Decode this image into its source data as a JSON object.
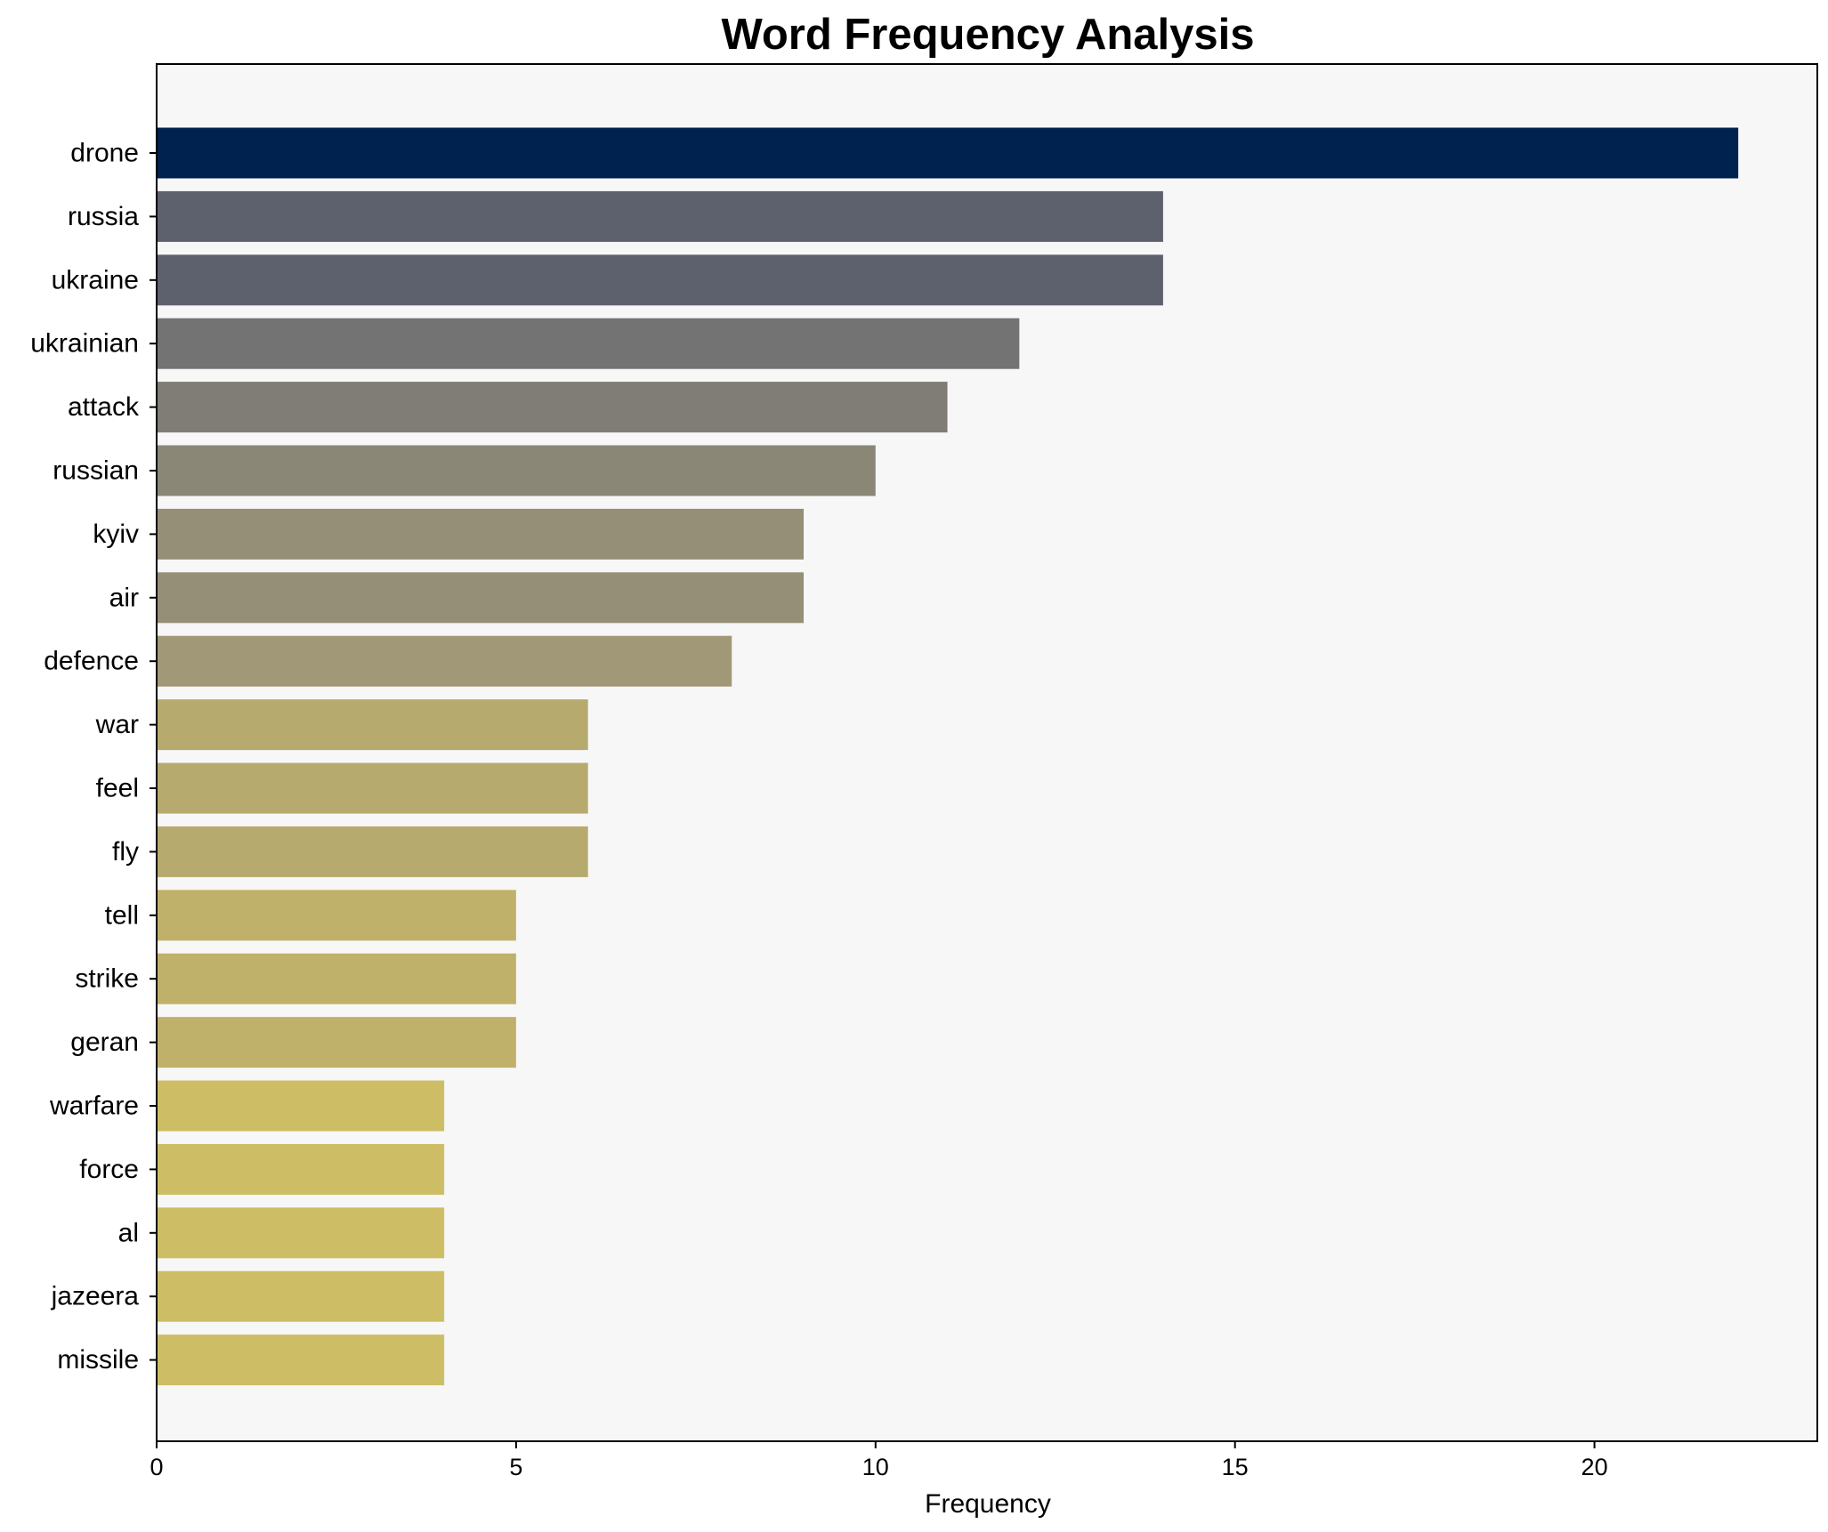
{
  "chart_data": {
    "type": "bar",
    "orientation": "horizontal",
    "title": "Word Frequency Analysis",
    "xlabel": "Frequency",
    "ylabel": "",
    "xlim": [
      0,
      23.1
    ],
    "xticks": [
      0,
      5,
      10,
      15,
      20
    ],
    "grid": false,
    "plot_background": "#f7f7f7",
    "categories": [
      "drone",
      "russia",
      "ukraine",
      "ukrainian",
      "attack",
      "russian",
      "kyiv",
      "air",
      "defence",
      "war",
      "feel",
      "fly",
      "tell",
      "strike",
      "geran",
      "warfare",
      "force",
      "al",
      "jazeera",
      "missile"
    ],
    "values": [
      22,
      14,
      14,
      12,
      11,
      10,
      9,
      9,
      8,
      6,
      6,
      6,
      5,
      5,
      5,
      4,
      4,
      4,
      4,
      4
    ],
    "colors": [
      "#00224e",
      "#5d616e",
      "#5d616e",
      "#737373",
      "#7f7d76",
      "#8b8777",
      "#958f78",
      "#958f78",
      "#a09877",
      "#b6aa6e",
      "#b6aa6e",
      "#b6aa6e",
      "#c0b16a",
      "#c0b16a",
      "#c0b16a",
      "#cdbe66",
      "#cdbe66",
      "#cdbe66",
      "#cdbe66",
      "#cdbe66"
    ]
  }
}
